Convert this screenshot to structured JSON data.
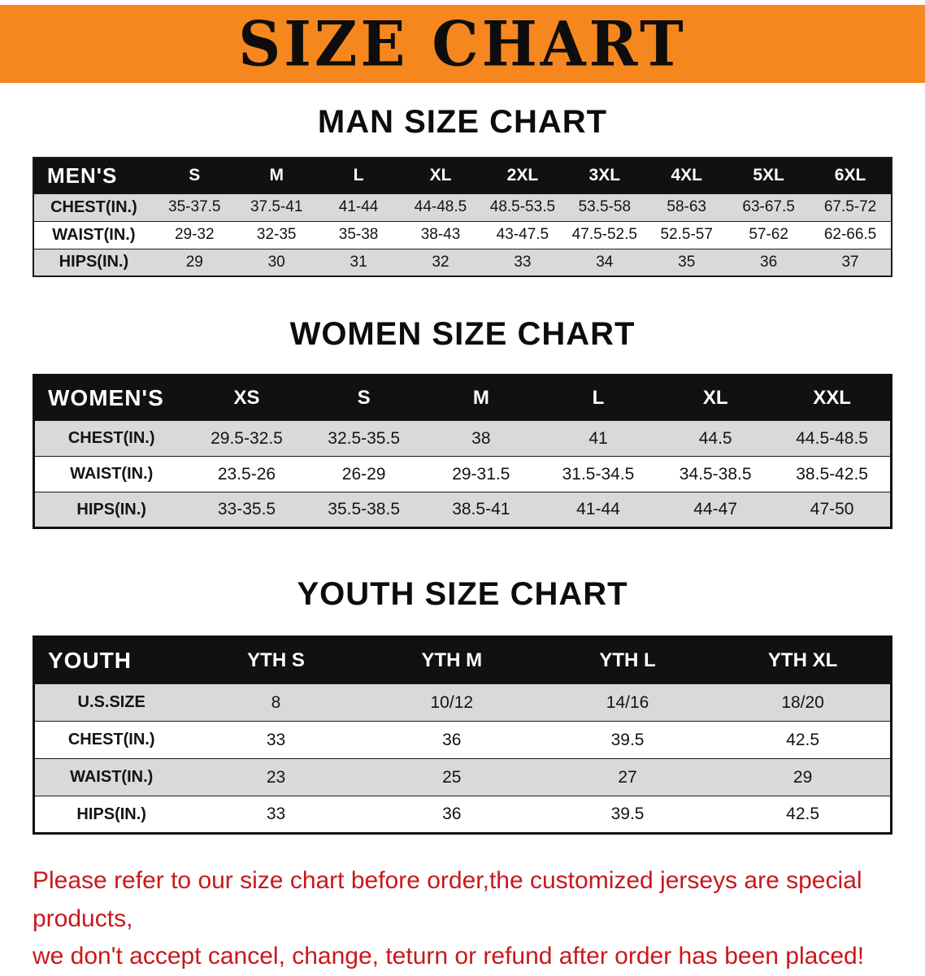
{
  "banner": {
    "title": "SIZE CHART"
  },
  "men": {
    "heading": "MAN SIZE CHART",
    "table": {
      "header": [
        "MEN'S",
        "S",
        "M",
        "L",
        "XL",
        "2XL",
        "3XL",
        "4XL",
        "5XL",
        "6XL"
      ],
      "rows": [
        [
          "CHEST(IN.)",
          "35-37.5",
          "37.5-41",
          "41-44",
          "44-48.5",
          "48.5-53.5",
          "53.5-58",
          "58-63",
          "63-67.5",
          "67.5-72"
        ],
        [
          "WAIST(IN.)",
          "29-32",
          "32-35",
          "35-38",
          "38-43",
          "43-47.5",
          "47.5-52.5",
          "52.5-57",
          "57-62",
          "62-66.5"
        ],
        [
          "HIPS(IN.)",
          "29",
          "30",
          "31",
          "32",
          "33",
          "34",
          "35",
          "36",
          "37"
        ]
      ]
    }
  },
  "women": {
    "heading": "WOMEN SIZE CHART",
    "table": {
      "header": [
        "WOMEN'S",
        "XS",
        "S",
        "M",
        "L",
        "XL",
        "XXL"
      ],
      "rows": [
        [
          "CHEST(IN.)",
          "29.5-32.5",
          "32.5-35.5",
          "38",
          "41",
          "44.5",
          "44.5-48.5"
        ],
        [
          "WAIST(IN.)",
          "23.5-26",
          "26-29",
          "29-31.5",
          "31.5-34.5",
          "34.5-38.5",
          "38.5-42.5"
        ],
        [
          "HIPS(IN.)",
          "33-35.5",
          "35.5-38.5",
          "38.5-41",
          "41-44",
          "44-47",
          "47-50"
        ]
      ]
    }
  },
  "youth": {
    "heading": "YOUTH SIZE CHART",
    "table": {
      "header": [
        "YOUTH",
        "YTH S",
        "YTH M",
        "YTH L",
        "YTH XL"
      ],
      "rows": [
        [
          "U.S.SIZE",
          "8",
          "10/12",
          "14/16",
          "18/20"
        ],
        [
          "CHEST(IN.)",
          "33",
          "36",
          "39.5",
          "42.5"
        ],
        [
          "WAIST(IN.)",
          "23",
          "25",
          "27",
          "29"
        ],
        [
          "HIPS(IN.)",
          "33",
          "36",
          "39.5",
          "42.5"
        ]
      ]
    }
  },
  "disclaimer": {
    "line1": "Please refer to our size chart before order,the customized jerseys are special products,",
    "line2": "we don't accept cancel, change, teturn or refund after order has been placed!"
  },
  "colors": {
    "banner_bg": "#F6871F",
    "header_bg": "#111111",
    "row_alt_bg": "#D9D9D9",
    "disclaimer_text": "#C9181C"
  }
}
